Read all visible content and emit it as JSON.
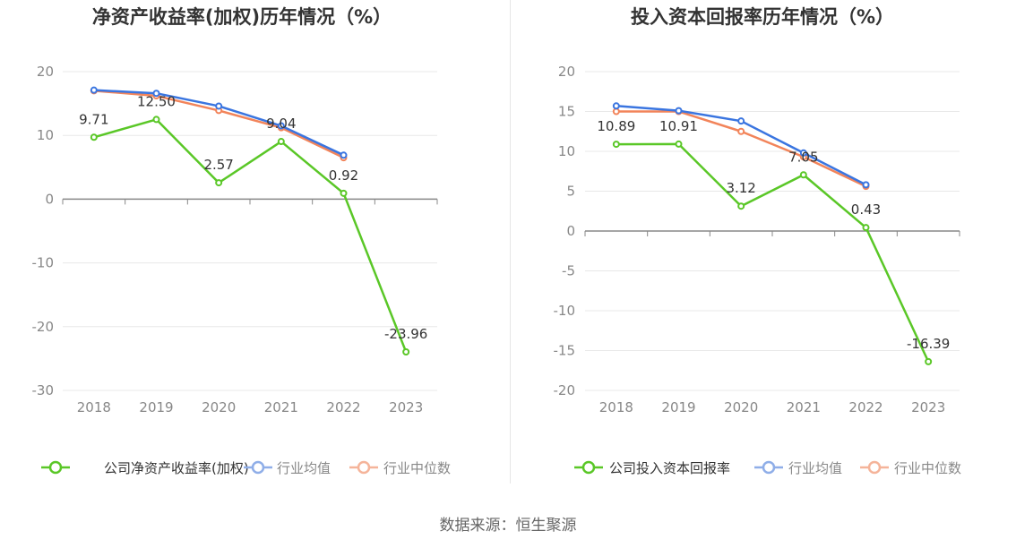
{
  "colors": {
    "company": "#5ac727",
    "industry_avg": "#3a75e0",
    "industry_median": "#f2845a",
    "legend_avg": "#8faee8",
    "legend_median": "#f5b49a",
    "grid": "#e8e8e8",
    "axis": "#888888",
    "tick_text": "#888888",
    "title_text": "#333333",
    "label_text": "#333333"
  },
  "source_text": "数据来源：恒生聚源",
  "chart_data": [
    {
      "type": "line",
      "title": "净资产收益率(加权)历年情况（%）",
      "categories": [
        "2018",
        "2019",
        "2020",
        "2021",
        "2022",
        "2023"
      ],
      "ylim": [
        -30,
        20
      ],
      "yticks": [
        20,
        10,
        0,
        -10,
        -20,
        -30
      ],
      "grid": true,
      "legend_position": "bottom",
      "series": [
        {
          "name": "公司净资产收益率(加权)",
          "key": "company",
          "values": [
            9.71,
            12.5,
            2.57,
            9.04,
            0.92,
            -23.96
          ],
          "labels": [
            "9.71",
            "12.50",
            "2.57",
            "9.04",
            "0.92",
            "-23.96"
          ]
        },
        {
          "name": "行业均值",
          "key": "industry_avg",
          "values": [
            17.1,
            16.6,
            14.6,
            11.5,
            6.9,
            null
          ]
        },
        {
          "name": "行业中位数",
          "key": "industry_median",
          "values": [
            17.0,
            16.2,
            13.9,
            11.2,
            6.5,
            null
          ]
        }
      ]
    },
    {
      "type": "line",
      "title": "投入资本回报率历年情况（%）",
      "categories": [
        "2018",
        "2019",
        "2020",
        "2021",
        "2022",
        "2023"
      ],
      "ylim": [
        -20,
        20
      ],
      "yticks": [
        20,
        15,
        10,
        5,
        0,
        -5,
        -10,
        -15,
        -20
      ],
      "grid": true,
      "legend_position": "bottom",
      "series": [
        {
          "name": "公司投入资本回报率",
          "key": "company",
          "values": [
            10.89,
            10.91,
            3.12,
            7.05,
            0.43,
            -16.39
          ],
          "labels": [
            "10.89",
            "10.91",
            "3.12",
            "7.05",
            "0.43",
            "-16.39"
          ]
        },
        {
          "name": "行业均值",
          "key": "industry_avg",
          "values": [
            15.7,
            15.1,
            13.8,
            9.8,
            5.8,
            null
          ]
        },
        {
          "name": "行业中位数",
          "key": "industry_median",
          "values": [
            15.0,
            15.0,
            12.5,
            9.3,
            5.6,
            null
          ]
        }
      ]
    }
  ]
}
